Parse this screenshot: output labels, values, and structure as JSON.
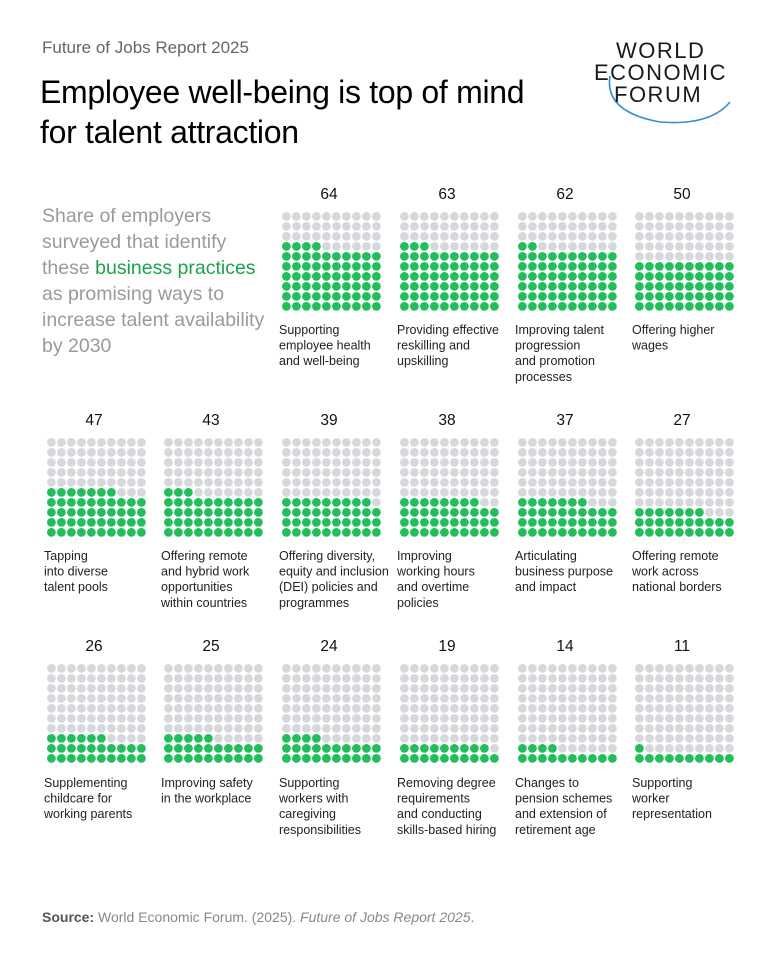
{
  "header": {
    "kicker": "Future of Jobs Report 2025",
    "title": "Employee well-being is top of mind for talent attraction"
  },
  "logo": {
    "line1": "WORLD",
    "line2": "ECONOMIC",
    "line3": "FORUM"
  },
  "subtitle": {
    "part1": "Share of employers surveyed that identify these ",
    "highlight": "business practices",
    "part2": " as promising ways to increase talent availability by 2030"
  },
  "source": {
    "label": "Source:",
    "text": " World Economic Forum. (2025). ",
    "italic": "Future of Jobs Report 2025",
    "end": "."
  },
  "colors": {
    "filled": "#1fbf5a",
    "empty": "#d6d8dc",
    "highlight": "#1ba34a"
  },
  "chart_data": {
    "type": "waffle",
    "unit": "percent of employers",
    "dots_per_chart": 100,
    "items": [
      {
        "value": 64,
        "label": [
          "Supporting",
          "employee health",
          "and well-being"
        ]
      },
      {
        "value": 63,
        "label": [
          "Providing effective",
          "reskilling and",
          "upskilling"
        ]
      },
      {
        "value": 62,
        "label": [
          "Improving talent",
          "progression",
          "and promotion",
          "processes"
        ]
      },
      {
        "value": 50,
        "label": [
          "Offering higher",
          "wages"
        ]
      },
      {
        "value": 47,
        "label": [
          "Tapping",
          "into diverse",
          "talent pools"
        ]
      },
      {
        "value": 43,
        "label": [
          "Offering remote",
          "and hybrid work",
          "opportunities",
          "within countries"
        ]
      },
      {
        "value": 39,
        "label": [
          "Offering diversity,",
          "equity and inclusion",
          "(DEI) policies and",
          "programmes"
        ]
      },
      {
        "value": 38,
        "label": [
          "Improving",
          "working hours",
          "and overtime",
          "policies"
        ]
      },
      {
        "value": 37,
        "label": [
          "Articulating",
          "business purpose",
          "and impact"
        ]
      },
      {
        "value": 27,
        "label": [
          "Offering remote",
          "work across",
          "national borders"
        ]
      },
      {
        "value": 26,
        "label": [
          "Supplementing",
          "childcare for",
          "working parents"
        ]
      },
      {
        "value": 25,
        "label": [
          "Improving safety",
          "in the workplace"
        ]
      },
      {
        "value": 24,
        "label": [
          "Supporting",
          "workers with",
          "caregiving",
          "responsibilities"
        ]
      },
      {
        "value": 19,
        "label": [
          "Removing degree",
          "requirements",
          "and conducting",
          "skills-based hiring"
        ]
      },
      {
        "value": 14,
        "label": [
          "Changes to",
          "pension schemes",
          "and extension of",
          "retirement age"
        ]
      },
      {
        "value": 11,
        "label": [
          "Supporting",
          "worker",
          "representation"
        ]
      }
    ]
  }
}
